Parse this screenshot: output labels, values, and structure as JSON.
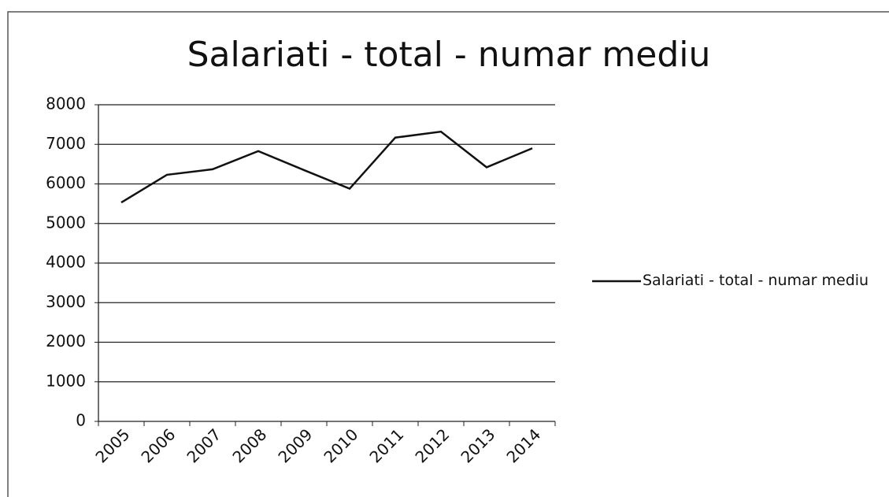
{
  "chart_data": {
    "type": "line",
    "title": "Salariati - total - numar mediu",
    "categories": [
      "2005",
      "2006",
      "2007",
      "2008",
      "2009",
      "2010",
      "2011",
      "2012",
      "2013",
      "2014"
    ],
    "series": [
      {
        "name": "Salariati - total - numar mediu",
        "color": "#111111",
        "values": [
          5530,
          6230,
          6370,
          6830,
          6350,
          5880,
          7170,
          7320,
          6420,
          6900
        ]
      }
    ],
    "ylim": [
      0,
      8000
    ],
    "yticks": [
      0,
      1000,
      2000,
      3000,
      4000,
      5000,
      6000,
      7000,
      8000
    ],
    "grid": true,
    "legend": "right"
  }
}
